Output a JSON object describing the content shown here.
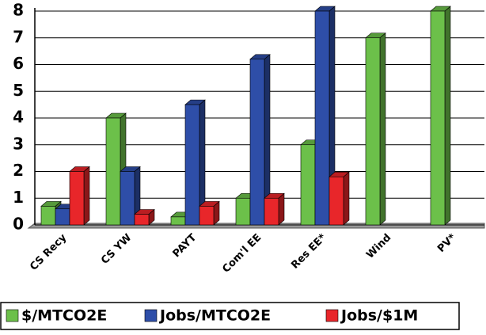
{
  "chart_data": {
    "type": "bar",
    "categories": [
      "CS Recy",
      "CS YW",
      "PAYT",
      "Com'l EE",
      "Res EE*",
      "Wind",
      "PV*"
    ],
    "series": [
      {
        "name": "$/MTCO2E",
        "color": "#6cc04a",
        "values": [
          0.7,
          4.0,
          0.3,
          1.0,
          3.0,
          7.0,
          8.0
        ]
      },
      {
        "name": "Jobs/MTCO2E",
        "color": "#2e4ea8",
        "values": [
          0.6,
          2.0,
          4.5,
          6.2,
          8.0,
          null,
          null
        ]
      },
      {
        "name": "Jobs/$1M",
        "color": "#e8262a",
        "values": [
          2.0,
          0.4,
          0.7,
          1.0,
          1.8,
          null,
          null
        ]
      }
    ],
    "ylim": [
      0,
      8
    ],
    "yticks": [
      0,
      1,
      2,
      3,
      4,
      5,
      6,
      7,
      8
    ],
    "grid": true,
    "legend": "bottom"
  }
}
